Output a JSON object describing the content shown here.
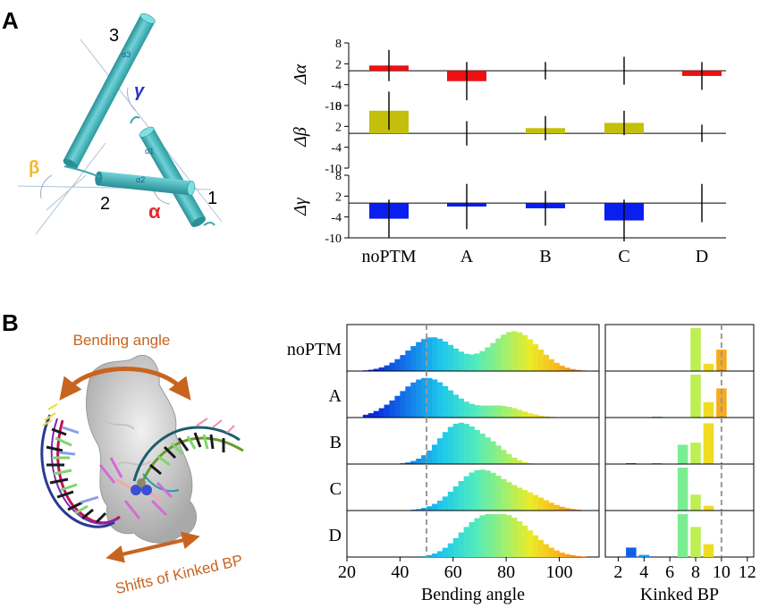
{
  "panel_a": {
    "letter": "A",
    "helix_labels": [
      "3",
      "2",
      "1"
    ],
    "helix_tags": [
      "α3",
      "α2",
      "α1"
    ],
    "angle_labels": {
      "alpha": "α",
      "beta": "β",
      "gamma": "γ"
    },
    "angle_colors": {
      "alpha": "#e8262f",
      "beta": "#f2b92a",
      "gamma": "#2233c8"
    },
    "cylinder_color": "#4ab8bf"
  },
  "panel_b": {
    "letter": "B",
    "bending_label": "Bending angle",
    "kinked_label": "Shifts of Kinked BP",
    "arrow_color": "#c86420"
  },
  "chart_data": [
    {
      "type": "bar",
      "ylabel": "Δα",
      "categories": [
        "noPTM",
        "A",
        "B",
        "C",
        "D"
      ],
      "values": [
        1.5,
        -3,
        0,
        0,
        -1.5
      ],
      "errors": [
        4.5,
        5.5,
        2.5,
        4,
        4
      ],
      "yticks": [
        8,
        2,
        -4,
        -10
      ],
      "ylim": [
        -10,
        8
      ],
      "color": "#ee1111"
    },
    {
      "type": "bar",
      "ylabel": "Δβ",
      "categories": [
        "noPTM",
        "A",
        "B",
        "C",
        "D"
      ],
      "values": [
        6.5,
        0,
        1.5,
        3,
        0
      ],
      "errors": [
        5.5,
        3.5,
        3.5,
        3.5,
        2.5
      ],
      "yticks": [
        8,
        2,
        -4,
        -10
      ],
      "ylim": [
        -10,
        8
      ],
      "color": "#c3bf0a"
    },
    {
      "type": "bar",
      "ylabel": "Δγ",
      "categories": [
        "noPTM",
        "A",
        "B",
        "C",
        "D"
      ],
      "values": [
        -4.5,
        -1,
        -1.5,
        -5,
        0
      ],
      "errors": [
        5.5,
        6.5,
        5,
        6,
        5.5
      ],
      "yticks": [
        8,
        2,
        -4,
        -10
      ],
      "ylim": [
        -10,
        8
      ],
      "color": "#0a1ef0"
    },
    {
      "type": "histogram",
      "xlabel": "Bending angle",
      "xticks": [
        20,
        40,
        60,
        80,
        100
      ],
      "xlim": [
        20,
        115
      ],
      "reference_line": 50,
      "rows": [
        "noPTM",
        "A",
        "B",
        "C",
        "D"
      ],
      "series": [
        {
          "name": "noPTM",
          "peaks": [
            [
              52,
              9,
              0.85
            ],
            [
              83,
              9,
              1.0
            ]
          ]
        },
        {
          "name": "A",
          "peaks": [
            [
              50,
              10,
              1.0
            ],
            [
              78,
              8,
              0.28
            ]
          ]
        },
        {
          "name": "B",
          "peaks": [
            [
              62,
              7.5,
              1.0
            ],
            [
              75,
              6,
              0.35
            ]
          ]
        },
        {
          "name": "C",
          "peaks": [
            [
              70,
              9,
              1.0
            ],
            [
              88,
              8,
              0.35
            ]
          ]
        },
        {
          "name": "D",
          "peaks": [
            [
              80,
              10,
              1.0
            ],
            [
              67,
              7,
              0.45
            ]
          ]
        }
      ]
    },
    {
      "type": "bar",
      "xlabel": "Kinked BP",
      "xticks": [
        2,
        4,
        6,
        8,
        10,
        12
      ],
      "xlim": [
        1,
        12.5
      ],
      "reference_line": 10,
      "rows": [
        "noPTM",
        "A",
        "B",
        "C",
        "D"
      ],
      "series": [
        {
          "name": "noPTM",
          "x": [
            8,
            9,
            10
          ],
          "values": [
            1.0,
            0.17,
            0.5
          ]
        },
        {
          "name": "A",
          "x": [
            5,
            8,
            9,
            10
          ],
          "values": [
            0.02,
            1.0,
            0.36,
            0.68
          ]
        },
        {
          "name": "B",
          "x": [
            3,
            5,
            7,
            8,
            9
          ],
          "values": [
            0.02,
            0.02,
            0.45,
            0.5,
            0.95
          ]
        },
        {
          "name": "C",
          "x": [
            7,
            8,
            9
          ],
          "values": [
            1.0,
            0.37,
            0.11
          ]
        },
        {
          "name": "D",
          "x": [
            3,
            4,
            7,
            8,
            9
          ],
          "values": [
            0.22,
            0.05,
            1.0,
            0.7,
            0.3
          ]
        }
      ]
    }
  ]
}
